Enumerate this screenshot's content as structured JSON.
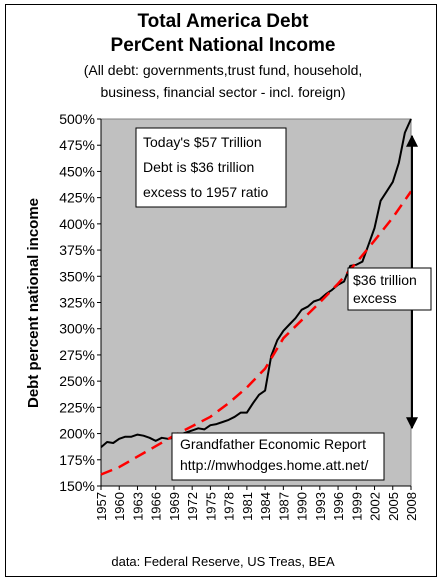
{
  "chart_data": {
    "type": "line",
    "title": [
      "Total America Debt",
      "PerCent National Income"
    ],
    "subtitle": [
      "(All debt: governments,trust fund, household,",
      "business, financial sector - incl. foreign)"
    ],
    "ylabel": "Debt percent national income",
    "ylim": [
      150,
      500
    ],
    "yticks": [
      150,
      175,
      200,
      225,
      250,
      275,
      300,
      325,
      350,
      375,
      400,
      425,
      450,
      475,
      500
    ],
    "ytick_labels": [
      "150%",
      "175%",
      "200%",
      "225%",
      "250%",
      "275%",
      "300%",
      "325%",
      "350%",
      "375%",
      "400%",
      "425%",
      "450%",
      "475%",
      "500%"
    ],
    "xlim": [
      1957,
      2008
    ],
    "xtick_labels": [
      "1957",
      "1960",
      "1963",
      "1966",
      "1969",
      "1972",
      "1975",
      "1978",
      "1981",
      "1984",
      "1987",
      "1990",
      "1993",
      "1996",
      "1999",
      "2002",
      "2005",
      "2008"
    ],
    "grid": false,
    "background": "#c0c0c0",
    "series": [
      {
        "style": "solid",
        "color": "#000000",
        "x": [
          1957,
          1958,
          1959,
          1960,
          1961,
          1962,
          1963,
          1964,
          1965,
          1966,
          1967,
          1968,
          1969,
          1970,
          1971,
          1972,
          1973,
          1974,
          1975,
          1976,
          1977,
          1978,
          1979,
          1980,
          1981,
          1982,
          1983,
          1984,
          1985,
          1986,
          1987,
          1988,
          1989,
          1990,
          1991,
          1992,
          1993,
          1994,
          1995,
          1996,
          1997,
          1998,
          1999,
          2000,
          2001,
          2002,
          2003,
          2004,
          2005,
          2006,
          2007,
          2008
        ],
        "values": [
          187,
          192,
          191,
          195,
          197,
          197,
          199,
          198,
          196,
          193,
          196,
          195,
          196,
          199,
          201,
          203,
          205,
          204,
          208,
          209,
          211,
          213,
          216,
          220,
          220,
          229,
          237,
          241,
          274,
          289,
          298,
          304,
          310,
          318,
          321,
          326,
          328,
          333,
          337,
          342,
          345,
          360,
          361,
          364,
          380,
          396,
          422,
          431,
          440,
          458,
          487,
          500
        ]
      },
      {
        "style": "dashed",
        "color": "#ff0000",
        "x": [
          1957,
          1960,
          1963,
          1966,
          1969,
          1972,
          1975,
          1978,
          1981,
          1984,
          1987,
          1990,
          1993,
          1996,
          1999,
          2002,
          2005,
          2008
        ],
        "values": [
          161,
          168,
          178,
          188,
          198,
          207,
          216,
          229,
          244,
          262,
          291,
          308,
          325,
          343,
          363,
          384,
          406,
          431
        ]
      }
    ],
    "annotations": {
      "top": [
        "Today's $57 Trillion",
        "Debt is $36 trillion",
        "excess to 1957 ratio"
      ],
      "right": [
        "$36 trillion",
        "excess"
      ],
      "bottom": [
        "Grandfather Economic Report",
        "http://mwhodges.home.att.net/"
      ]
    },
    "source": "data: Federal Reserve, US Treas, BEA"
  }
}
